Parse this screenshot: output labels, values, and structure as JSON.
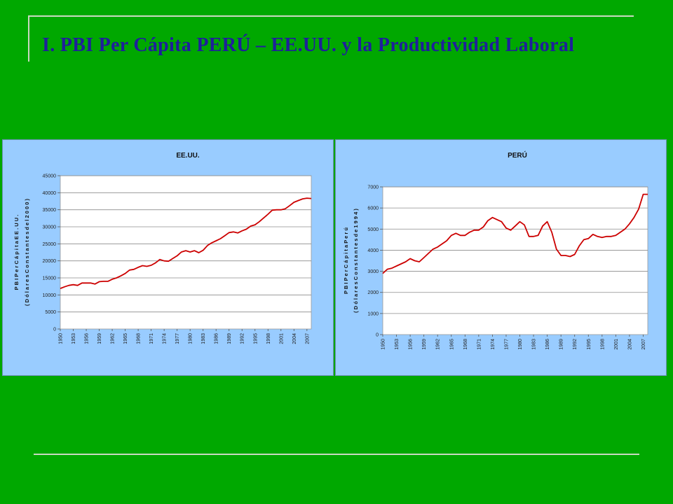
{
  "slide": {
    "title": "I. PBI Per Cápita PERÚ – EE.UU. y la Productividad Laboral"
  },
  "colors": {
    "background": "#00A800",
    "title": "#1F1F9C",
    "panel": "#99CCFF",
    "line": "#CC0000"
  },
  "chart_data": [
    {
      "type": "line",
      "title": "EE.UU.",
      "ylabel_lines": [
        "P B I  P e r  C á p i t a  E E . U U .",
        "( D ó l a r e s  C o n s t a n t e s  d e l  2 0 0 0 )"
      ],
      "xlabel": "",
      "ylim": [
        0,
        45000
      ],
      "yticks": [
        0,
        5000,
        10000,
        15000,
        20000,
        25000,
        30000,
        35000,
        40000,
        45000
      ],
      "xlim": [
        1950,
        2008
      ],
      "xticks": [
        "1950",
        "1953",
        "1956",
        "1959",
        "1962",
        "1965",
        "1968",
        "1971",
        "1974",
        "1977",
        "1980",
        "1983",
        "1986",
        "1989",
        "1992",
        "1995",
        "1998",
        "2001",
        "2004",
        "2007"
      ],
      "grid": "horizontal",
      "legend": "none",
      "series": [
        {
          "color": "#CC0000",
          "x": [
            1950,
            1951,
            1952,
            1953,
            1954,
            1955,
            1956,
            1957,
            1958,
            1959,
            1960,
            1961,
            1962,
            1963,
            1964,
            1965,
            1966,
            1967,
            1968,
            1969,
            1970,
            1971,
            1972,
            1973,
            1974,
            1975,
            1976,
            1977,
            1978,
            1979,
            1980,
            1981,
            1982,
            1983,
            1984,
            1985,
            1986,
            1987,
            1988,
            1989,
            1990,
            1991,
            1992,
            1993,
            1994,
            1995,
            1996,
            1997,
            1998,
            1999,
            2000,
            2001,
            2002,
            2003,
            2004,
            2005,
            2006,
            2007,
            2008
          ],
          "y": [
            11900,
            12400,
            12800,
            13000,
            12800,
            13500,
            13500,
            13500,
            13200,
            13900,
            14000,
            14000,
            14600,
            15000,
            15600,
            16300,
            17300,
            17500,
            18100,
            18600,
            18400,
            18700,
            19400,
            20400,
            20000,
            19900,
            20700,
            21500,
            22600,
            23000,
            22600,
            23000,
            22400,
            23100,
            24500,
            25300,
            25900,
            26500,
            27400,
            28300,
            28500,
            28200,
            28800,
            29300,
            30200,
            30600,
            31500,
            32600,
            33700,
            34900,
            35000,
            35000,
            35300,
            36200,
            37200,
            37700,
            38200,
            38400,
            38300
          ]
        }
      ]
    },
    {
      "type": "line",
      "title": "PERÚ",
      "ylabel_lines": [
        "P B I  P e r  C á p i t a  P e r ú",
        "( D ó l a r e s  C o n s t a n t e s  d e  1 9 9 4 )"
      ],
      "xlabel": "",
      "ylim": [
        0,
        7000
      ],
      "yticks": [
        0,
        1000,
        2000,
        3000,
        4000,
        5000,
        6000,
        7000
      ],
      "xlim": [
        1950,
        2008
      ],
      "xticks": [
        "1950",
        "1953",
        "1956",
        "1959",
        "1962",
        "1965",
        "1968",
        "1971",
        "1974",
        "1977",
        "1980",
        "1983",
        "1986",
        "1989",
        "1992",
        "1995",
        "1998",
        "2001",
        "2004",
        "2007"
      ],
      "grid": "horizontal",
      "legend": "none",
      "series": [
        {
          "color": "#CC0000",
          "x": [
            1950,
            1951,
            1952,
            1953,
            1954,
            1955,
            1956,
            1957,
            1958,
            1959,
            1960,
            1961,
            1962,
            1963,
            1964,
            1965,
            1966,
            1967,
            1968,
            1969,
            1970,
            1971,
            1972,
            1973,
            1974,
            1975,
            1976,
            1977,
            1978,
            1979,
            1980,
            1981,
            1982,
            1983,
            1984,
            1985,
            1986,
            1987,
            1988,
            1989,
            1990,
            1991,
            1992,
            1993,
            1994,
            1995,
            1996,
            1997,
            1998,
            1999,
            2000,
            2001,
            2002,
            2003,
            2004,
            2005,
            2006,
            2007,
            2008
          ],
          "y": [
            2900,
            3100,
            3150,
            3250,
            3350,
            3450,
            3600,
            3500,
            3450,
            3650,
            3850,
            4050,
            4150,
            4300,
            4450,
            4700,
            4800,
            4700,
            4700,
            4850,
            4950,
            4950,
            5100,
            5400,
            5550,
            5450,
            5350,
            5050,
            4950,
            5150,
            5350,
            5200,
            4650,
            4650,
            4700,
            5150,
            5350,
            4850,
            4050,
            3750,
            3750,
            3700,
            3800,
            4200,
            4500,
            4550,
            4750,
            4650,
            4600,
            4650,
            4650,
            4700,
            4850,
            5000,
            5250,
            5550,
            5950,
            6650,
            6650
          ]
        }
      ]
    }
  ]
}
